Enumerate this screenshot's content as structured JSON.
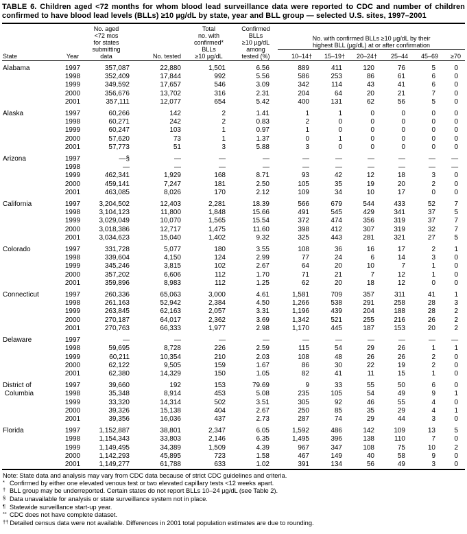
{
  "title": "TABLE 6. Children aged <72 months for whom blood lead surveillance data were reported to CDC and number of children confirmed to have blood lead levels (BLLs) ≥10 µg/dL by state, year and BLL group — selected U.S. sites, 1997–2001",
  "table": {
    "columns": {
      "state": "State",
      "year": "Year",
      "population": "No. aged\n<72 mos\nfor states\nsubmitting\ndata",
      "tested": "No. tested",
      "total_confirmed": "Total\nno. with\nconfirmed*\nBLLs\n≥10 µg/dL",
      "pct_confirmed": "Confirmed\nBLLs\n≥10 µg/dL\namong\ntested (%)",
      "group_header": "No. with confirmed BLLs ≥10 µg/dL by their\nhighest BLL (µg/dL) at or after confirmation",
      "bll_groups": [
        "10–14†",
        "15–19†",
        "20–24†",
        "25–44",
        "45–69",
        "≥70"
      ]
    },
    "states": [
      {
        "name": "Alabama",
        "rows": [
          {
            "year": "1997",
            "population": "357,087",
            "tested": "22,880",
            "total": "1,501",
            "pct": "6.56",
            "bll": [
              "889",
              "411",
              "120",
              "76",
              "5",
              "0"
            ]
          },
          {
            "year": "1998",
            "population": "352,409",
            "tested": "17,844",
            "total": "992",
            "pct": "5.56",
            "bll": [
              "586",
              "253",
              "86",
              "61",
              "6",
              "0"
            ]
          },
          {
            "year": "1999",
            "population": "349,592",
            "tested": "17,657",
            "total": "546",
            "pct": "3.09",
            "bll": [
              "342",
              "114",
              "43",
              "41",
              "6",
              "0"
            ]
          },
          {
            "year": "2000",
            "population": "356,676",
            "tested": "13,702",
            "total": "316",
            "pct": "2.31",
            "bll": [
              "204",
              "64",
              "20",
              "21",
              "7",
              "0"
            ]
          },
          {
            "year": "2001",
            "population": "357,111",
            "tested": "12,077",
            "total": "654",
            "pct": "5.42",
            "bll": [
              "400",
              "131",
              "62",
              "56",
              "5",
              "0"
            ]
          }
        ]
      },
      {
        "name": "Alaska",
        "rows": [
          {
            "year": "1997",
            "population": "60,266",
            "tested": "142",
            "total": "2",
            "pct": "1.41",
            "bll": [
              "1",
              "1",
              "0",
              "0",
              "0",
              "0"
            ]
          },
          {
            "year": "1998",
            "population": "60,271",
            "tested": "242",
            "total": "2",
            "pct": "0.83",
            "bll": [
              "2",
              "0",
              "0",
              "0",
              "0",
              "0"
            ]
          },
          {
            "year": "1999",
            "population": "60,247",
            "tested": "103",
            "total": "1",
            "pct": "0.97",
            "bll": [
              "1",
              "0",
              "0",
              "0",
              "0",
              "0"
            ]
          },
          {
            "year": "2000",
            "population": "57,620",
            "tested": "73",
            "total": "1",
            "pct": "1.37",
            "bll": [
              "0",
              "1",
              "0",
              "0",
              "0",
              "0"
            ]
          },
          {
            "year": "2001",
            "population": "57,773",
            "tested": "51",
            "total": "3",
            "pct": "5.88",
            "bll": [
              "3",
              "0",
              "0",
              "0",
              "0",
              "0"
            ]
          }
        ]
      },
      {
        "name": "Arizona",
        "rows": [
          {
            "year": "1997",
            "population": "—§",
            "tested": "—",
            "total": "—",
            "pct": "—",
            "bll": [
              "—",
              "—",
              "—",
              "—",
              "—",
              "—"
            ]
          },
          {
            "year": "1998",
            "population": "—",
            "tested": "—",
            "total": "—",
            "pct": "—",
            "bll": [
              "—",
              "—",
              "—",
              "—",
              "—",
              "—"
            ]
          },
          {
            "year": "1999",
            "population": "462,341",
            "tested": "1,929",
            "total": "168",
            "pct": "8.71",
            "bll": [
              "93",
              "42",
              "12",
              "18",
              "3",
              "0"
            ]
          },
          {
            "year": "2000",
            "population": "459,141",
            "tested": "7,247",
            "total": "181",
            "pct": "2.50",
            "bll": [
              "105",
              "35",
              "19",
              "20",
              "2",
              "0"
            ]
          },
          {
            "year": "2001",
            "population": "463,085",
            "tested": "8,026",
            "total": "170",
            "pct": "2.12",
            "bll": [
              "109",
              "34",
              "10",
              "17",
              "0",
              "0"
            ]
          }
        ]
      },
      {
        "name": "California",
        "rows": [
          {
            "year": "1997",
            "population": "3,204,502",
            "tested": "12,403",
            "total": "2,281",
            "pct": "18.39",
            "bll": [
              "566",
              "679",
              "544",
              "433",
              "52",
              "7"
            ]
          },
          {
            "year": "1998",
            "population": "3,104,123",
            "tested": "11,800",
            "total": "1,848",
            "pct": "15.66",
            "bll": [
              "491",
              "545",
              "429",
              "341",
              "37",
              "5"
            ]
          },
          {
            "year": "1999",
            "population": "3,029,049",
            "tested": "10,070",
            "total": "1,565",
            "pct": "15.54",
            "bll": [
              "372",
              "474",
              "356",
              "319",
              "37",
              "7"
            ]
          },
          {
            "year": "2000",
            "population": "3,018,386",
            "tested": "12,717",
            "total": "1,475",
            "pct": "11.60",
            "bll": [
              "398",
              "412",
              "307",
              "319",
              "32",
              "7"
            ]
          },
          {
            "year": "2001",
            "population": "3,034,623",
            "tested": "15,040",
            "total": "1,402",
            "pct": "9.32",
            "bll": [
              "325",
              "443",
              "281",
              "321",
              "27",
              "5"
            ]
          }
        ]
      },
      {
        "name": "Colorado",
        "rows": [
          {
            "year": "1997",
            "population": "331,728",
            "tested": "5,077",
            "total": "180",
            "pct": "3.55",
            "bll": [
              "108",
              "36",
              "16",
              "17",
              "2",
              "1"
            ]
          },
          {
            "year": "1998",
            "population": "339,604",
            "tested": "4,150",
            "total": "124",
            "pct": "2.99",
            "bll": [
              "77",
              "24",
              "6",
              "14",
              "3",
              "0"
            ]
          },
          {
            "year": "1999",
            "population": "345,246",
            "tested": "3,815",
            "total": "102",
            "pct": "2.67",
            "bll": [
              "64",
              "20",
              "10",
              "7",
              "1",
              "0"
            ]
          },
          {
            "year": "2000",
            "population": "357,202",
            "tested": "6,606",
            "total": "112",
            "pct": "1.70",
            "bll": [
              "71",
              "21",
              "7",
              "12",
              "1",
              "0"
            ]
          },
          {
            "year": "2001",
            "population": "359,896",
            "tested": "8,983",
            "total": "112",
            "pct": "1.25",
            "bll": [
              "62",
              "20",
              "18",
              "12",
              "0",
              "0"
            ]
          }
        ]
      },
      {
        "name": "Connecticut",
        "rows": [
          {
            "year": "1997",
            "population": "260,336",
            "tested": "65,063",
            "total": "3,000",
            "pct": "4.61",
            "bll": [
              "1,581",
              "709",
              "357",
              "311",
              "41",
              "1"
            ]
          },
          {
            "year": "1998",
            "population": "261,163",
            "tested": "52,942",
            "total": "2,384",
            "pct": "4.50",
            "bll": [
              "1,266",
              "538",
              "291",
              "258",
              "28",
              "3"
            ]
          },
          {
            "year": "1999",
            "population": "263,845",
            "tested": "62,163",
            "total": "2,057",
            "pct": "3.31",
            "bll": [
              "1,196",
              "439",
              "204",
              "188",
              "28",
              "2"
            ]
          },
          {
            "year": "2000",
            "population": "270,187",
            "tested": "64,017",
            "total": "2,362",
            "pct": "3.69",
            "bll": [
              "1,342",
              "521",
              "255",
              "216",
              "26",
              "2"
            ]
          },
          {
            "year": "2001",
            "population": "270,763",
            "tested": "66,333",
            "total": "1,977",
            "pct": "2.98",
            "bll": [
              "1,170",
              "445",
              "187",
              "153",
              "20",
              "2"
            ]
          }
        ]
      },
      {
        "name": "Delaware",
        "rows": [
          {
            "year": "1997",
            "population": "—",
            "tested": "—",
            "total": "—",
            "pct": "—",
            "bll": [
              "—",
              "—",
              "—",
              "—",
              "—",
              "—"
            ]
          },
          {
            "year": "1998",
            "population": "59,695",
            "tested": "8,728",
            "total": "226",
            "pct": "2.59",
            "bll": [
              "115",
              "54",
              "29",
              "26",
              "1",
              "1"
            ]
          },
          {
            "year": "1999",
            "population": "60,211",
            "tested": "10,354",
            "total": "210",
            "pct": "2.03",
            "bll": [
              "108",
              "48",
              "26",
              "26",
              "2",
              "0"
            ]
          },
          {
            "year": "2000",
            "population": "62,122",
            "tested": "9,505",
            "total": "159",
            "pct": "1.67",
            "bll": [
              "86",
              "30",
              "22",
              "19",
              "2",
              "0"
            ]
          },
          {
            "year": "2001",
            "population": "62,380",
            "tested": "14,329",
            "total": "150",
            "pct": "1.05",
            "bll": [
              "82",
              "41",
              "11",
              "15",
              "1",
              "0"
            ]
          }
        ]
      },
      {
        "name": "District of\n Columbia",
        "rows": [
          {
            "year": "1997",
            "population": "39,660",
            "tested": "192",
            "total": "153",
            "pct": "79.69",
            "bll": [
              "9",
              "33",
              "55",
              "50",
              "6",
              "0"
            ]
          },
          {
            "year": "1998",
            "population": "35,348",
            "tested": "8,914",
            "total": "453",
            "pct": "5.08",
            "bll": [
              "235",
              "105",
              "54",
              "49",
              "9",
              "1"
            ]
          },
          {
            "year": "1999",
            "population": "33,320",
            "tested": "14,314",
            "total": "502",
            "pct": "3.51",
            "bll": [
              "305",
              "92",
              "46",
              "55",
              "4",
              "0"
            ]
          },
          {
            "year": "2000",
            "population": "39,326",
            "tested": "15,138",
            "total": "404",
            "pct": "2.67",
            "bll": [
              "250",
              "85",
              "35",
              "29",
              "4",
              "1"
            ]
          },
          {
            "year": "2001",
            "population": "39,356",
            "tested": "16,036",
            "total": "437",
            "pct": "2.73",
            "bll": [
              "287",
              "74",
              "29",
              "44",
              "3",
              "0"
            ]
          }
        ]
      },
      {
        "name": "Florida",
        "rows": [
          {
            "year": "1997",
            "population": "1,152,887",
            "tested": "38,801",
            "total": "2,347",
            "pct": "6.05",
            "bll": [
              "1,592",
              "486",
              "142",
              "109",
              "13",
              "5"
            ]
          },
          {
            "year": "1998",
            "population": "1,154,343",
            "tested": "33,803",
            "total": "2,146",
            "pct": "6.35",
            "bll": [
              "1,495",
              "396",
              "138",
              "110",
              "7",
              "0"
            ]
          },
          {
            "year": "1999",
            "population": "1,149,495",
            "tested": "34,389",
            "total": "1,509",
            "pct": "4.39",
            "bll": [
              "967",
              "347",
              "108",
              "75",
              "10",
              "2"
            ]
          },
          {
            "year": "2000",
            "population": "1,142,293",
            "tested": "45,895",
            "total": "723",
            "pct": "1.58",
            "bll": [
              "467",
              "149",
              "40",
              "58",
              "9",
              "0"
            ]
          },
          {
            "year": "2001",
            "population": "1,149,277",
            "tested": "61,788",
            "total": "633",
            "pct": "1.02",
            "bll": [
              "391",
              "134",
              "56",
              "49",
              "3",
              "0"
            ]
          }
        ]
      }
    ]
  },
  "footnotes": [
    {
      "marker": "Note:",
      "text": "State data and analysis may vary from CDC data because of strict CDC guidelines and criteria.",
      "sup": false
    },
    {
      "marker": "*",
      "text": "Confirmed by either one elevated venous test or two elevated capillary tests <12 weeks apart.",
      "sup": true
    },
    {
      "marker": "†",
      "text": "BLL group may be underreported. Certain states do not report BLLs 10–24 µg/dL (see Table 2).",
      "sup": true
    },
    {
      "marker": "§",
      "text": "Data unavailable for analysis or state surveillance system not in place.",
      "sup": true
    },
    {
      "marker": "¶",
      "text": "Statewide surveillance start-up year.",
      "sup": true
    },
    {
      "marker": "**",
      "text": "CDC does not have complete dataset.",
      "sup": true
    },
    {
      "marker": "††",
      "text": "Detailed census data were not available. Differences in 2001 total population estimates are due to rounding.",
      "sup": true
    }
  ]
}
